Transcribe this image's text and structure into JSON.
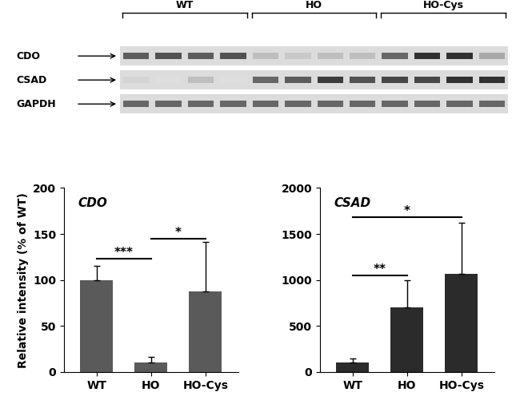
{
  "blot": {
    "groups": [
      "WT",
      "HO",
      "HO-Cys"
    ],
    "rows": [
      {
        "label": "CDO",
        "bands": [
          0.75,
          0.8,
          0.75,
          0.8,
          0.3,
          0.25,
          0.3,
          0.3,
          0.7,
          0.95,
          0.95,
          0.4
        ]
      },
      {
        "label": "CSAD",
        "bands": [
          0.2,
          0.15,
          0.3,
          0.15,
          0.7,
          0.75,
          0.9,
          0.8,
          0.85,
          0.85,
          0.95,
          0.95
        ]
      },
      {
        "label": "GAPDH",
        "bands": [
          0.7,
          0.7,
          0.7,
          0.7,
          0.7,
          0.7,
          0.7,
          0.7,
          0.7,
          0.7,
          0.7,
          0.7
        ]
      }
    ]
  },
  "chart_data": [
    {
      "type": "bar",
      "title": "CDO",
      "y_label": "Relative intensity (% of WT)",
      "categories": [
        "WT",
        "HO",
        "HO-Cys"
      ],
      "values": [
        100,
        10,
        88
      ],
      "errors": [
        15,
        6,
        53
      ],
      "color": "#5a5a5a",
      "ylim": [
        0,
        200
      ],
      "yticks": [
        0,
        50,
        100,
        150,
        200
      ],
      "significance": [
        {
          "from": "WT",
          "to": "HO",
          "label": "***",
          "y": 123
        },
        {
          "from": "HO",
          "to": "HO-Cys",
          "label": "*",
          "y": 145
        }
      ]
    },
    {
      "type": "bar",
      "title": "CSAD",
      "categories": [
        "WT",
        "HO",
        "HO-Cys"
      ],
      "values": [
        100,
        700,
        1070
      ],
      "errors": [
        50,
        295,
        555
      ],
      "color": "#2b2b2b",
      "ylim": [
        0,
        2000
      ],
      "yticks": [
        0,
        500,
        1000,
        1500,
        2000
      ],
      "significance": [
        {
          "from": "WT",
          "to": "HO",
          "label": "**",
          "y": 1050
        },
        {
          "from": "WT",
          "to": "HO-Cys",
          "label": "*",
          "y": 1680
        }
      ]
    }
  ]
}
